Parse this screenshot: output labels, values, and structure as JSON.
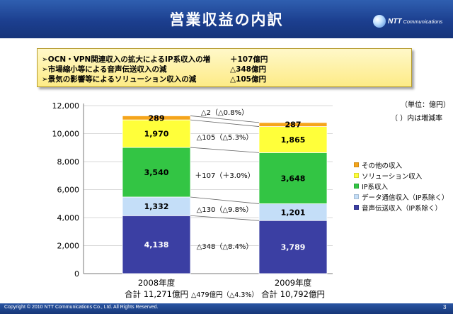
{
  "header": {
    "title": "営業収益の内訳",
    "brand_ntt": "NTT",
    "brand_com": "Communications"
  },
  "notes": [
    {
      "text": "➢OCN・VPN関連収入の拡大によるIP系収入の増",
      "value": "＋107億円"
    },
    {
      "text": "➢市場縮小等による音声伝送収入の減",
      "value": "△348億円"
    },
    {
      "text": "➢景気の影響等によるソリューション収入の減",
      "value": "△105億円"
    }
  ],
  "unit_label": "（単位：億円）",
  "paren_note": "（ ）内は増減率",
  "chart_data": {
    "type": "bar",
    "stacked": true,
    "categories": [
      "2008年度",
      "2009年度"
    ],
    "ylim": [
      0,
      12000
    ],
    "yticks": [
      "0",
      "2,000",
      "4,000",
      "6,000",
      "8,000",
      "10,000",
      "12,000"
    ],
    "series": [
      {
        "name": "音声伝送収入（IP系除く）",
        "values": [
          4138,
          3789
        ],
        "labels": [
          "4,138",
          "3,789"
        ],
        "color": "#3b3fa3"
      },
      {
        "name": "データ通信収入（IP系除く）",
        "values": [
          1332,
          1201
        ],
        "labels": [
          "1,332",
          "1,201"
        ],
        "color": "#c4def8"
      },
      {
        "name": "IP系収入",
        "values": [
          3540,
          3648
        ],
        "labels": [
          "3,540",
          "3,648"
        ],
        "color": "#33c544"
      },
      {
        "name": "ソリューション収入",
        "values": [
          1970,
          1865
        ],
        "labels": [
          "1,970",
          "1,865"
        ],
        "color": "#ffff3a"
      },
      {
        "name": "その他の収入",
        "values": [
          289,
          287
        ],
        "labels": [
          "289",
          "287"
        ],
        "color": "#f5a51b"
      }
    ],
    "changes": [
      "△348（△8.4%）",
      "△130（△9.8%）",
      "＋107（＋3.0%）",
      "△105（△5.3%）",
      "△2（△0.8%）"
    ],
    "totals": [
      "合計 11,271億円",
      "合計 10,792億円"
    ],
    "total_change": "△479億円（△4.3%）",
    "legend_order": [
      "その他の収入",
      "ソリューション収入",
      "IP系収入",
      "データ通信収入（IP系除く）",
      "音声伝送収入（IP系除く）"
    ]
  },
  "footer": {
    "copyright": "Copyright © 2010 NTT Communications Co., Ltd. All Rights Reserved.",
    "page": "3"
  }
}
